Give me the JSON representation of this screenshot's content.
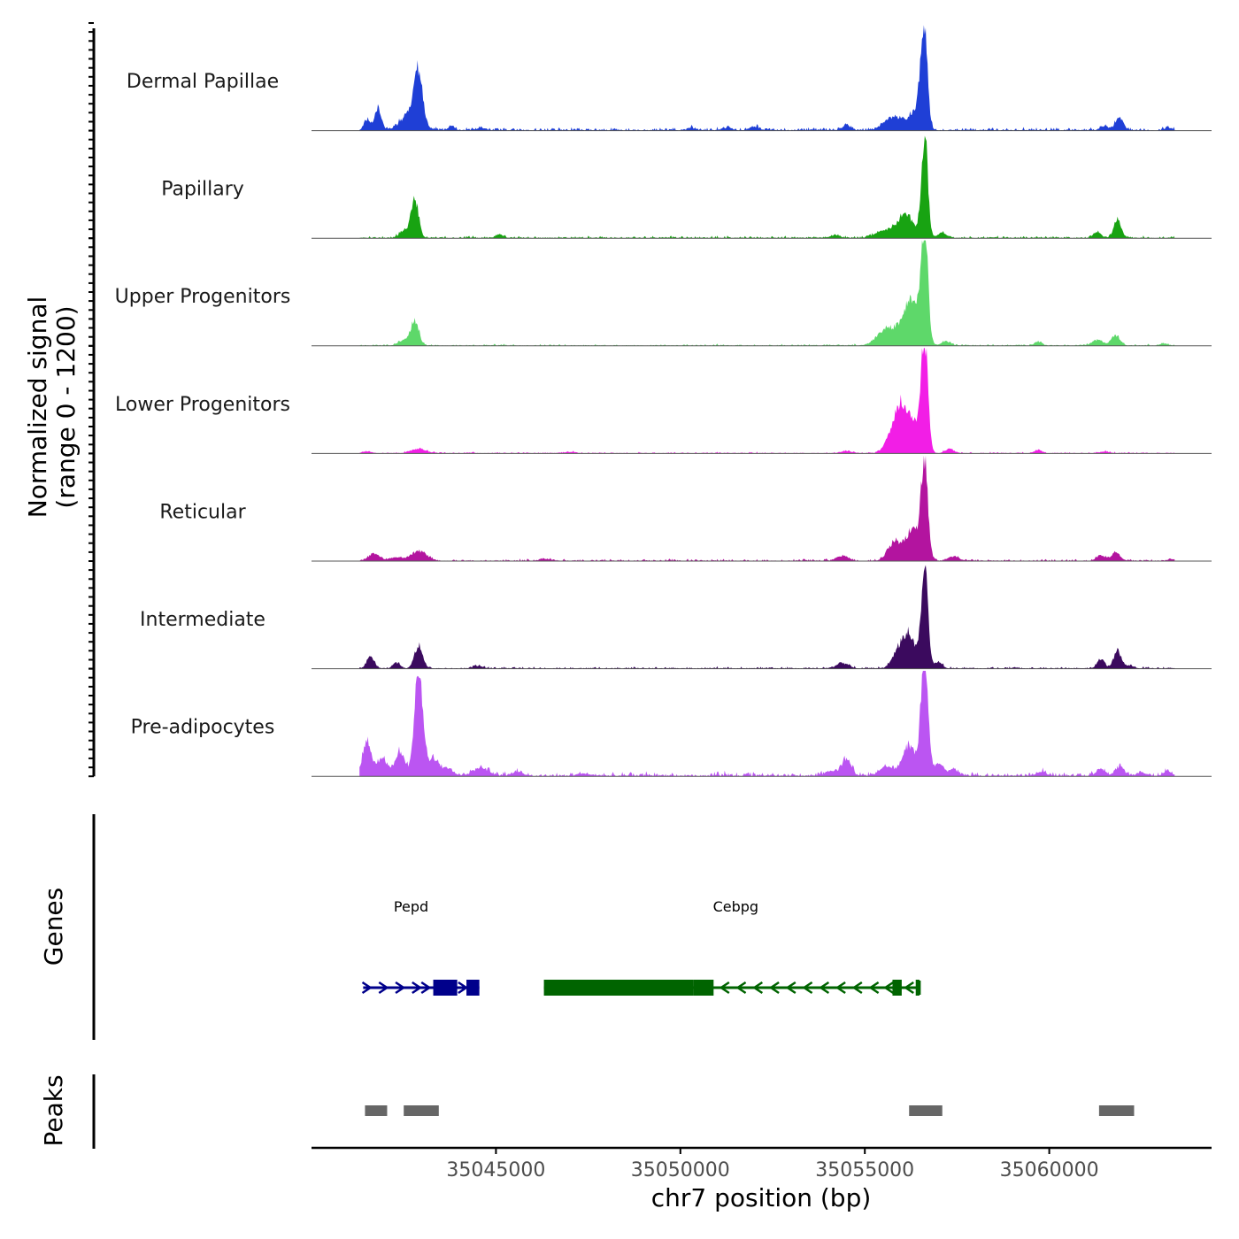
{
  "chart_data": {
    "type": "area",
    "region": {
      "chromosome": "chr7",
      "start": 35040000,
      "end": 35064400
    },
    "ylabel_line1": "Normalized signal",
    "ylabel_line2": "(range 0 - 1200)",
    "ylim": [
      0,
      1200
    ],
    "xlabel": "chr7 position (bp)",
    "xticks": [
      35045000,
      35050000,
      35055000,
      35060000
    ],
    "xtick_labels": [
      "35045000",
      "35050000",
      "35055000",
      "35060000"
    ],
    "tracks": [
      {
        "name": "Dermal Papillae",
        "color": "#1f3fd6",
        "peaks": [
          [
            35041500,
            120,
            80
          ],
          [
            35041800,
            260,
            90
          ],
          [
            35042900,
            560,
            110
          ],
          [
            35042700,
            200,
            250
          ],
          [
            35043800,
            60,
            80
          ],
          [
            35054500,
            60,
            100
          ],
          [
            35055800,
            150,
            260
          ],
          [
            35056400,
            200,
            180
          ],
          [
            35056600,
            1150,
            90
          ],
          [
            35061900,
            150,
            100
          ],
          [
            35061500,
            50,
            100
          ],
          [
            35050300,
            30,
            100
          ],
          [
            35051300,
            30,
            100
          ],
          [
            35052000,
            40,
            120
          ],
          [
            35044600,
            30,
            120
          ],
          [
            35063200,
            25,
            100
          ]
        ],
        "base": 22
      },
      {
        "name": "Papillary",
        "color": "#18a312",
        "peaks": [
          [
            35042800,
            460,
            100
          ],
          [
            35042500,
            80,
            120
          ],
          [
            35045100,
            40,
            100
          ],
          [
            35055500,
            80,
            220
          ],
          [
            35056100,
            270,
            220
          ],
          [
            35056620,
            1180,
            85
          ],
          [
            35057100,
            60,
            120
          ],
          [
            35061300,
            70,
            100
          ],
          [
            35061850,
            200,
            100
          ],
          [
            35054200,
            30,
            120
          ]
        ],
        "base": 16
      },
      {
        "name": "Upper Progenitors",
        "color": "#5ed86a",
        "peaks": [
          [
            35042800,
            280,
            110
          ],
          [
            35042500,
            60,
            150
          ],
          [
            35055600,
            180,
            260
          ],
          [
            35056200,
            310,
            240
          ],
          [
            35056620,
            1300,
            90
          ],
          [
            35056300,
            250,
            180
          ],
          [
            35057200,
            50,
            120
          ],
          [
            35059700,
            40,
            100
          ],
          [
            35061300,
            60,
            150
          ],
          [
            35061800,
            110,
            120
          ],
          [
            35063100,
            25,
            100
          ]
        ],
        "base": 12
      },
      {
        "name": "Lower Progenitors",
        "color": "#f21ee6",
        "peaks": [
          [
            35042900,
            50,
            200
          ],
          [
            35041500,
            20,
            120
          ],
          [
            35055800,
            260,
            200
          ],
          [
            35056300,
            360,
            200
          ],
          [
            35056620,
            1280,
            90
          ],
          [
            35056000,
            320,
            150
          ],
          [
            35057300,
            50,
            120
          ],
          [
            35059700,
            35,
            100
          ],
          [
            35054500,
            25,
            150
          ],
          [
            35047000,
            15,
            150
          ],
          [
            35061500,
            20,
            120
          ]
        ],
        "base": 10
      },
      {
        "name": "Reticular",
        "color": "#b3149f",
        "peaks": [
          [
            35041700,
            80,
            150
          ],
          [
            35042900,
            110,
            200
          ],
          [
            35042300,
            40,
            150
          ],
          [
            35046300,
            25,
            120
          ],
          [
            35054400,
            60,
            150
          ],
          [
            35055800,
            200,
            180
          ],
          [
            35056300,
            330,
            200
          ],
          [
            35056620,
            1120,
            90
          ],
          [
            35057400,
            50,
            150
          ],
          [
            35061400,
            60,
            120
          ],
          [
            35061800,
            90,
            120
          ],
          [
            35063300,
            20,
            100
          ]
        ],
        "base": 14
      },
      {
        "name": "Intermediate",
        "color": "#3b0a5e",
        "peaks": [
          [
            35041600,
            130,
            100
          ],
          [
            35042300,
            60,
            100
          ],
          [
            35042900,
            260,
            110
          ],
          [
            35044500,
            30,
            120
          ],
          [
            35054400,
            60,
            150
          ],
          [
            35055900,
            170,
            160
          ],
          [
            35056200,
            380,
            170
          ],
          [
            35056620,
            1220,
            90
          ],
          [
            35057000,
            70,
            100
          ],
          [
            35061400,
            110,
            100
          ],
          [
            35061850,
            200,
            100
          ],
          [
            35062200,
            35,
            100
          ]
        ],
        "base": 14
      },
      {
        "name": "Pre-adipocytes",
        "color": "#bb55f2",
        "peaks": [
          [
            35041500,
            400,
            110
          ],
          [
            35041900,
            200,
            150
          ],
          [
            35042400,
            280,
            130
          ],
          [
            35042900,
            1240,
            110
          ],
          [
            35043300,
            200,
            150
          ],
          [
            35043700,
            80,
            150
          ],
          [
            35044600,
            90,
            200
          ],
          [
            35045600,
            40,
            150
          ],
          [
            35047400,
            25,
            150
          ],
          [
            35054500,
            200,
            120
          ],
          [
            35054100,
            60,
            150
          ],
          [
            35055600,
            100,
            200
          ],
          [
            35056200,
            340,
            180
          ],
          [
            35056620,
            1420,
            95
          ],
          [
            35057000,
            150,
            120
          ],
          [
            35057400,
            60,
            150
          ],
          [
            35059800,
            40,
            120
          ],
          [
            35061400,
            70,
            120
          ],
          [
            35061900,
            100,
            120
          ],
          [
            35062500,
            40,
            120
          ],
          [
            35063200,
            60,
            100
          ]
        ],
        "base": 30
      }
    ],
    "genes": [
      {
        "name": "Pepd",
        "color": "#00008b",
        "strand": "+",
        "start": 35041400,
        "end": 35044550,
        "label_pos": 35042700,
        "exons": [
          [
            35043300,
            35043950
          ],
          [
            35044200,
            35044550
          ]
        ],
        "arrows": [
          35041500,
          35041950,
          35042400,
          35042850,
          35043100,
          35044100
        ]
      },
      {
        "name": "Cebpg",
        "color": "#006400",
        "strand": "-",
        "start": 35046300,
        "end": 35056480,
        "label_pos": 35051500,
        "exons": [
          [
            35046300,
            35050350
          ],
          [
            35050350,
            35050900
          ],
          [
            35055750,
            35056000
          ],
          [
            35056380,
            35056480
          ]
        ],
        "arrows": [
          35051200,
          35051650,
          35052100,
          35052550,
          35053000,
          35053450,
          35053900,
          35054350,
          35054800,
          35055250,
          35055650,
          35056200
        ]
      }
    ],
    "peak_regions": [
      [
        35041450,
        35042050
      ],
      [
        35042500,
        35043450
      ],
      [
        35056200,
        35057100
      ],
      [
        35061350,
        35062300
      ]
    ],
    "panel_labels": {
      "genes": "Genes",
      "peaks": "Peaks"
    }
  }
}
